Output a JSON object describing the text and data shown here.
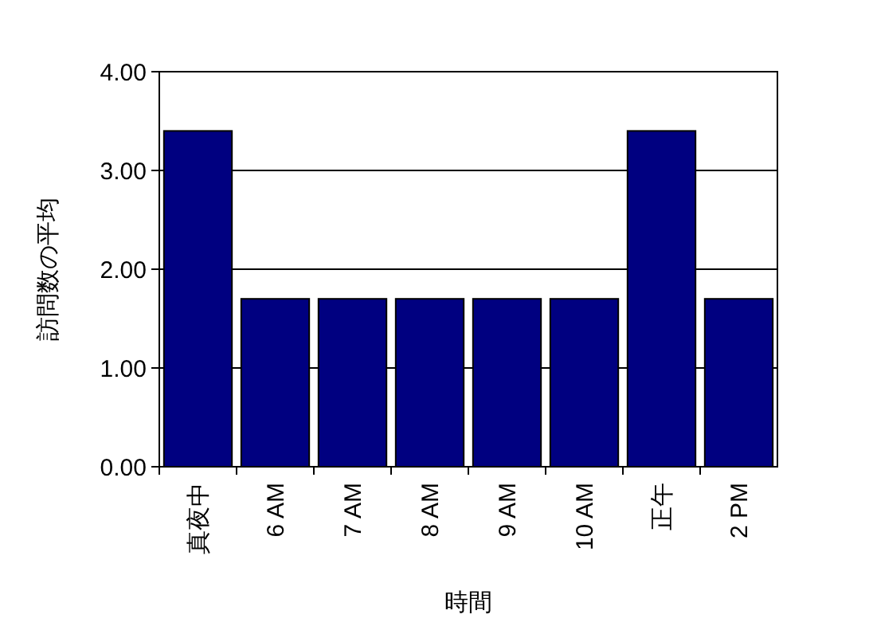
{
  "chart_data": {
    "type": "bar",
    "xlabel": "時間",
    "ylabel": "訪問数の平均",
    "categories": [
      "真夜中",
      "6 AM",
      "7 AM",
      "8 AM",
      "9 AM",
      "10 AM",
      "正午",
      "2 PM"
    ],
    "values": [
      3.4,
      1.7,
      1.7,
      1.7,
      1.7,
      1.7,
      3.4,
      1.7
    ],
    "color": "#000080",
    "ylim": [
      0,
      4
    ],
    "yticks": [
      {
        "value": 0,
        "label": "0.00"
      },
      {
        "value": 1,
        "label": "1.00"
      },
      {
        "value": 2,
        "label": "2.00"
      },
      {
        "value": 3,
        "label": "3.00"
      },
      {
        "value": 4,
        "label": "4.00"
      }
    ],
    "grid": "y"
  }
}
